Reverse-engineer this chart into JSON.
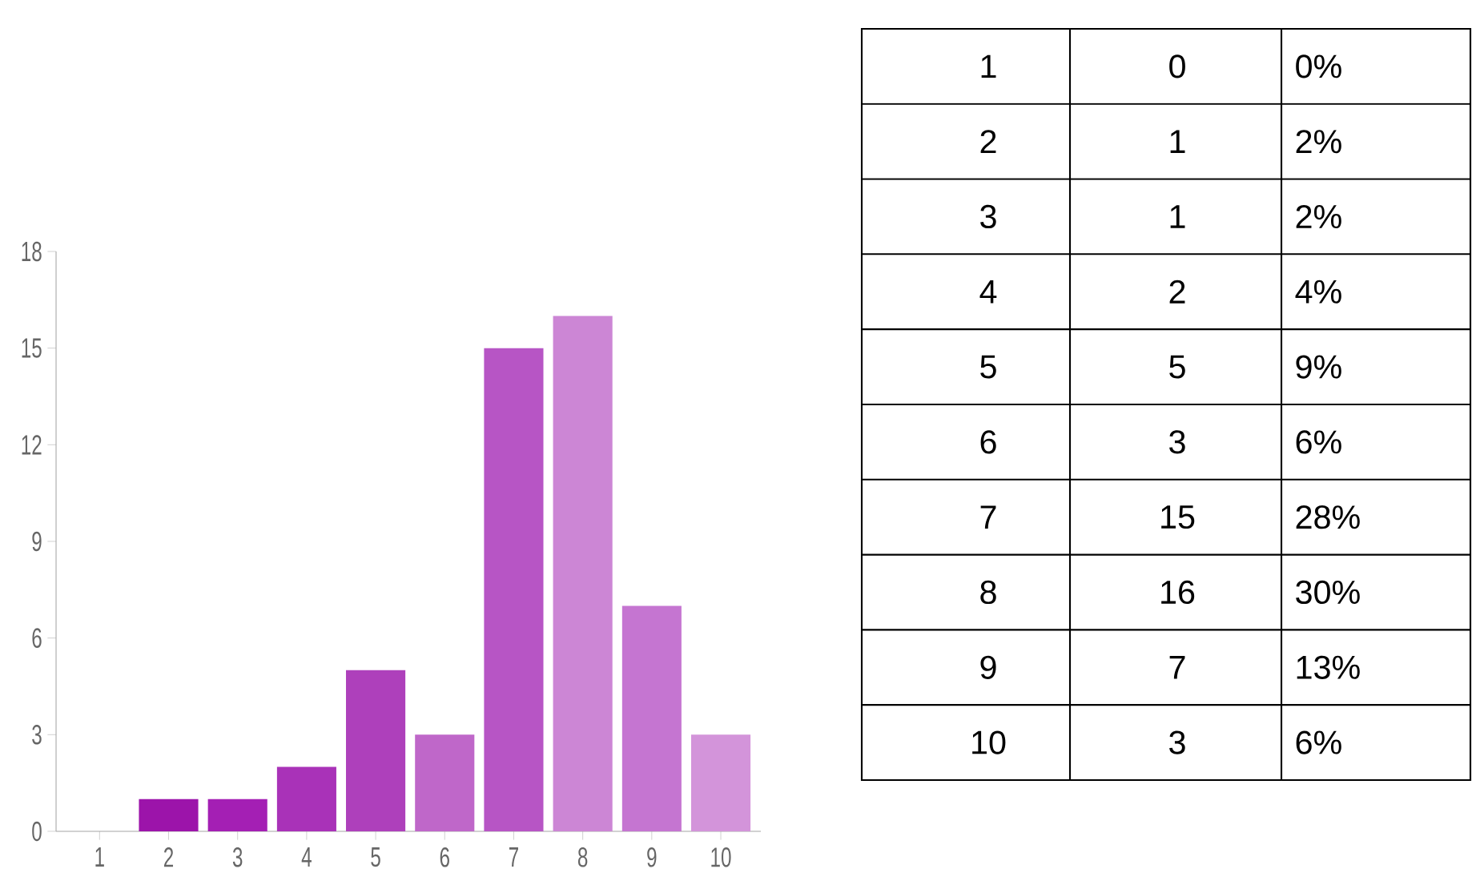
{
  "chart_data": {
    "type": "bar",
    "categories": [
      "1",
      "2",
      "3",
      "4",
      "5",
      "6",
      "7",
      "8",
      "9",
      "10"
    ],
    "values": [
      0,
      1,
      1,
      2,
      5,
      3,
      15,
      16,
      7,
      3
    ],
    "annotations": [
      "0",
      "0%",
      "1",
      "2%",
      "1",
      "2%",
      "2",
      "4%",
      "5",
      "9%",
      "3",
      "6%",
      "15",
      "28%",
      "16",
      "30%",
      "7",
      "13%",
      "3",
      "6%"
    ],
    "colors": [
      "#9c14aa",
      "#9c14aa",
      "#a41fb4",
      "#a932b8",
      "#ae40bb",
      "#bf67c9",
      "#b755c5",
      "#cc86d5",
      "#c575d1",
      "#d394da"
    ],
    "ylim": [
      0,
      18
    ],
    "yticks": [
      0,
      3,
      6,
      9,
      12,
      15,
      18
    ],
    "grid": false
  }
}
